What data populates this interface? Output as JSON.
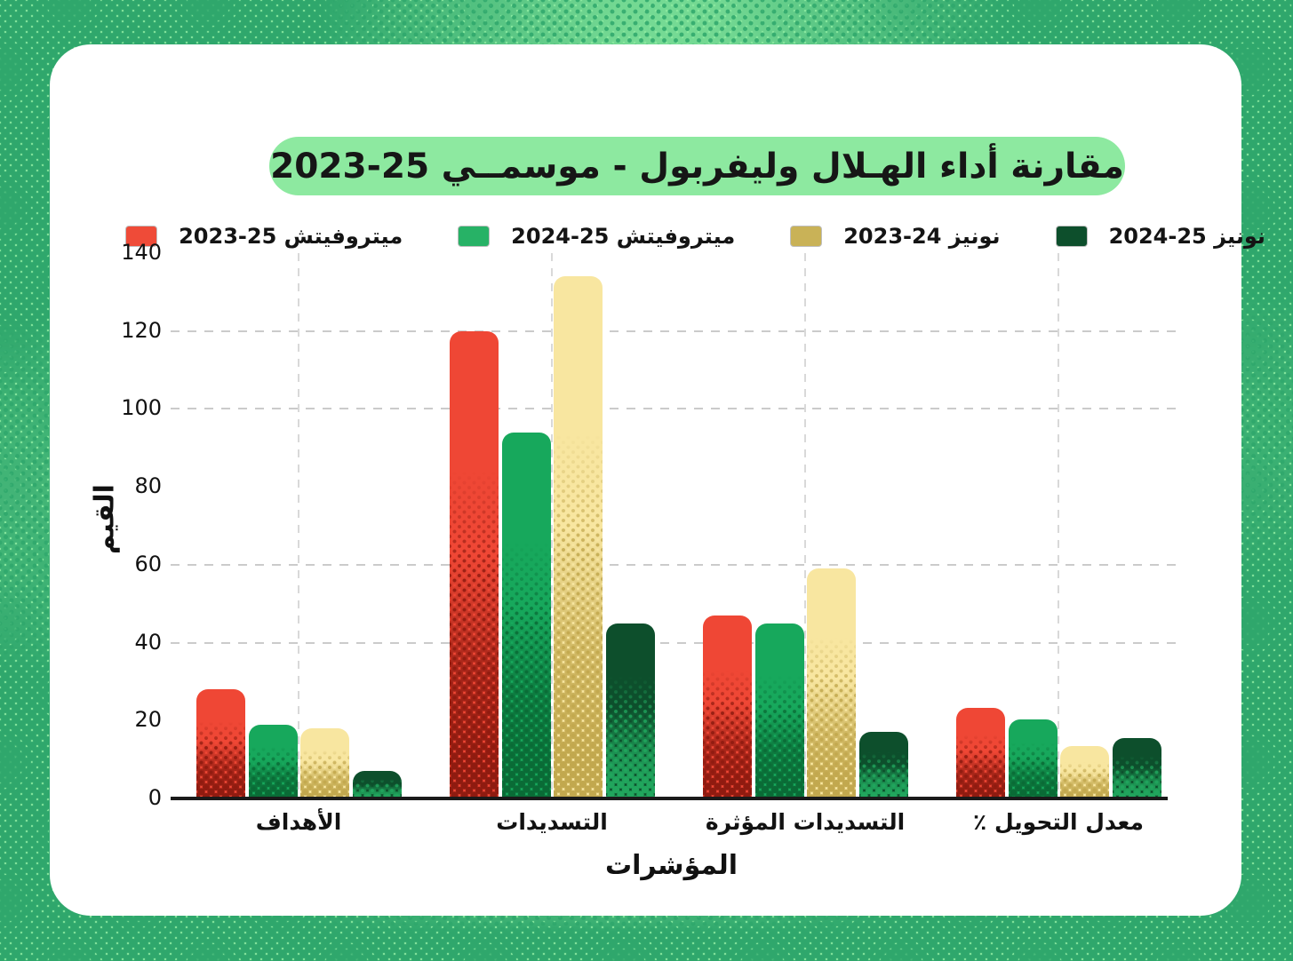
{
  "page": {
    "background_color": "#8DEBA1",
    "halftone_dot_color": "#2FA76C",
    "card_color": "#FFFFFF"
  },
  "title": {
    "text": "مقارنة أداء الهـلال وليفربول - موسمــي 25-2023",
    "pill_color": "#8DE9A0"
  },
  "legend": {
    "items": [
      {
        "label": "ميتروفيتش 25-2023",
        "color": "#EF4B38"
      },
      {
        "label": "ميتروفيتش 25-2024",
        "color": "#27B266"
      },
      {
        "label": "نونيز 24-2023",
        "color": "#C9B257"
      },
      {
        "label": "نونيز 25-2024",
        "color": "#0D4F2C"
      }
    ]
  },
  "chart_data": {
    "type": "bar",
    "title": "مقارنة أداء الهـلال وليفربول - موسمي 2023-25",
    "categories": [
      "الأهداف",
      "التسديدات",
      "التسديدات المؤثرة",
      "معدل التحويل ٪"
    ],
    "series": [
      {
        "name": "ميتروفيتش 2023-25",
        "color": "#EF4735",
        "dot_color": "#8F1B10",
        "values": [
          28,
          120,
          47,
          23.3
        ]
      },
      {
        "name": "ميتروفيتش 2024-25",
        "color": "#17A85C",
        "dot_color": "#0A6B36",
        "values": [
          19,
          94,
          45,
          20.2
        ]
      },
      {
        "name": "نونيز 2023-24",
        "color": "#F8E6A0",
        "dot_color": "#C2A84E",
        "values": [
          18,
          134,
          59,
          13.4
        ]
      },
      {
        "name": "نونيز 2024-25",
        "color": "#0D4F2C",
        "dot_color": "#21A55D",
        "values": [
          7,
          45,
          17,
          15.6
        ]
      }
    ],
    "xlabel": "المؤشرات",
    "ylabel": "القيم",
    "ylim": [
      0,
      140
    ],
    "yticks": [
      0,
      20,
      40,
      60,
      80,
      100,
      120,
      140
    ],
    "gridlines_y": [
      40,
      60,
      100,
      120
    ],
    "grid_vertical_at_categories": true,
    "legend_position": "top",
    "bar_style": "halftone-gradient"
  }
}
